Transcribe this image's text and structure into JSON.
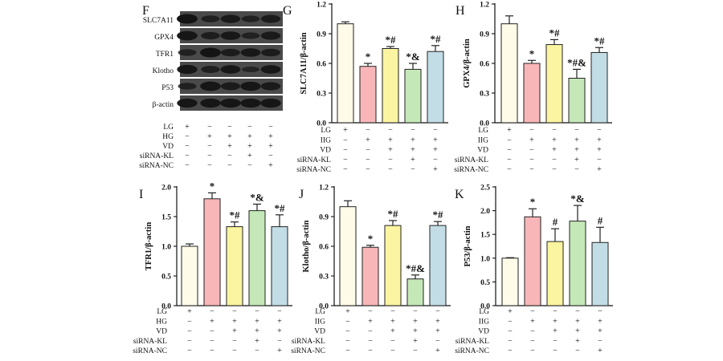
{
  "colors": {
    "LG": "#fffbe9",
    "HG": "#f8b6b8",
    "VD": "#fbf4a0",
    "siRNA_KL": "#c4e8b7",
    "siRNA_NC": "#c2dde6",
    "band_bg": "#4a4a4a",
    "band_dark": "#141414"
  },
  "groups_table": {
    "row_labels": [
      "LG",
      "HG",
      "VD",
      "siRNA-KL",
      "siRNA-NC"
    ],
    "signs": [
      [
        "+",
        "−",
        "−",
        "−",
        "−"
      ],
      [
        "−",
        "+",
        "+",
        "+",
        "+"
      ],
      [
        "−",
        "−",
        "+",
        "+",
        "+"
      ],
      [
        "−",
        "−",
        "−",
        "+",
        "−"
      ],
      [
        "−",
        "−",
        "−",
        "−",
        "+"
      ]
    ]
  },
  "blot": {
    "panel_letter": "F",
    "row_labels": [
      "SLC7A11",
      "GPX4",
      "TFR1",
      "Klotho",
      "P53",
      "β-actin"
    ],
    "table_row_labels": [
      "LG",
      "HG",
      "VD",
      "siRNA-KL",
      "siRNA-NC"
    ],
    "table_signs": [
      [
        "+",
        "−",
        "−",
        "−",
        "−"
      ],
      [
        "−",
        "+",
        "+",
        "+",
        "+"
      ],
      [
        "−",
        "−",
        "+",
        "+",
        "+"
      ],
      [
        "−",
        "−",
        "−",
        "+",
        "−"
      ],
      [
        "−",
        "−",
        "−",
        "−",
        "+"
      ]
    ]
  },
  "chart_data": [
    {
      "panel": "G",
      "type": "bar",
      "ylabel": "SLC7A11/β-actin",
      "ylim": [
        0,
        1.2
      ],
      "yticks": [
        "0.0",
        "0.3",
        "0.6",
        "0.9",
        "1.2"
      ],
      "values": [
        1.0,
        0.57,
        0.75,
        0.54,
        0.72
      ],
      "errors": [
        0.02,
        0.03,
        0.02,
        0.06,
        0.06
      ],
      "annotations": [
        "",
        "*",
        "*#",
        "*&",
        "*#"
      ],
      "table_row_labels": [
        "LG",
        "IIG",
        "VD",
        "siRNA-KL",
        "siRNA-NC"
      ]
    },
    {
      "panel": "H",
      "type": "bar",
      "ylabel": "GPX4/β-actin",
      "ylim": [
        0,
        1.2
      ],
      "yticks": [
        "0.0",
        "0.3",
        "0.6",
        "0.9",
        "1.2"
      ],
      "values": [
        1.0,
        0.6,
        0.79,
        0.45,
        0.71
      ],
      "errors": [
        0.08,
        0.03,
        0.05,
        0.09,
        0.05
      ],
      "annotations": [
        "",
        "*",
        "*#",
        "*#&",
        "*#"
      ],
      "table_row_labels": [
        "LG",
        "IIG",
        "VD",
        "siRNA-KL",
        "siRNA-NC"
      ]
    },
    {
      "panel": "I",
      "type": "bar",
      "ylabel": "TFR1/β-actin",
      "ylim": [
        0,
        2.0
      ],
      "yticks": [
        "0.0",
        "0.5",
        "1.0",
        "1.5",
        "2.0"
      ],
      "values": [
        1.0,
        1.8,
        1.33,
        1.6,
        1.33
      ],
      "errors": [
        0.04,
        0.1,
        0.08,
        0.11,
        0.2
      ],
      "annotations": [
        "",
        "*",
        "*#",
        "*&",
        "*#"
      ],
      "table_row_labels": [
        "LG",
        "HG",
        "VD",
        "siRNA-KL",
        "siRNA-NC"
      ]
    },
    {
      "panel": "J",
      "type": "bar",
      "ylabel": "Klotho/β-actin",
      "ylim": [
        0,
        1.2
      ],
      "yticks": [
        "0.0",
        "0.3",
        "0.6",
        "0.9",
        "1.2"
      ],
      "values": [
        1.0,
        0.59,
        0.81,
        0.27,
        0.81
      ],
      "errors": [
        0.06,
        0.02,
        0.05,
        0.04,
        0.04
      ],
      "annotations": [
        "",
        "*",
        "*#",
        "*#&",
        "*#"
      ],
      "table_row_labels": [
        "LG",
        "IIG",
        "VD",
        "siRNA-KL",
        "siRNA-NC"
      ]
    },
    {
      "panel": "K",
      "type": "bar",
      "ylabel": "P53/β-actin",
      "ylim": [
        0,
        2.5
      ],
      "yticks": [
        "0.0",
        "0.5",
        "1.0",
        "1.5",
        "2.0",
        "2.5"
      ],
      "values": [
        1.0,
        1.87,
        1.35,
        1.78,
        1.33
      ],
      "errors": [
        0.01,
        0.17,
        0.27,
        0.33,
        0.32
      ],
      "annotations": [
        "",
        "*",
        "#",
        "*&",
        "#"
      ],
      "table_row_labels": [
        "LG",
        "IIG",
        "VD",
        "siRNA-KL",
        "siRNA-NC"
      ]
    }
  ]
}
